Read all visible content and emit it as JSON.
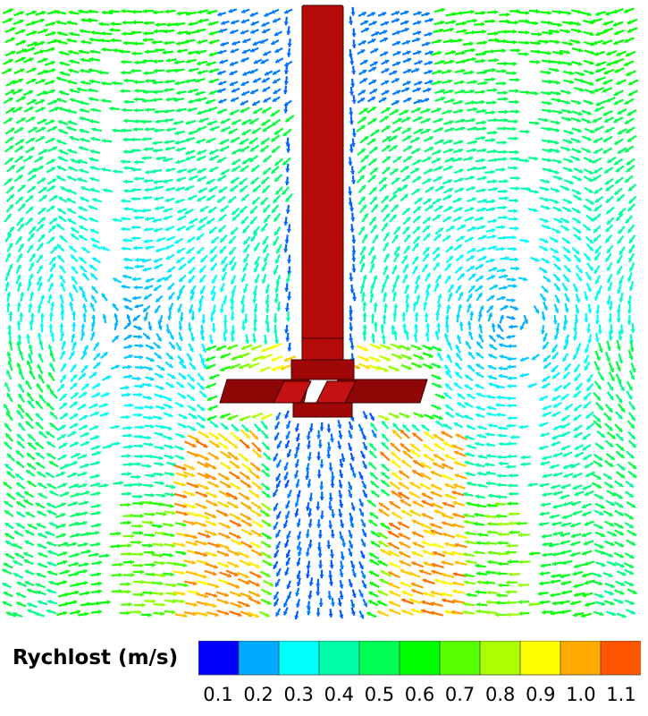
{
  "legend": {
    "title": "Rychlost (m/s)",
    "ticks": [
      "0.1",
      "0.2",
      "0.3",
      "0.4",
      "0.5",
      "0.6",
      "0.7",
      "0.8",
      "0.9",
      "1.0",
      "1.1"
    ],
    "colors": [
      "#0000ff",
      "#0055ff",
      "#00aaff",
      "#00ffff",
      "#00ffaa",
      "#00ff55",
      "#00ff00",
      "#55ff00",
      "#aaff00",
      "#ffff00",
      "#ffaa00",
      "#ff5500",
      "#ff0000"
    ]
  },
  "impeller": {
    "shaft_color": "#b40a0a",
    "hub_color": "#a00808",
    "blade_color": "#8e0606",
    "edge_color": "#3a0000"
  }
}
